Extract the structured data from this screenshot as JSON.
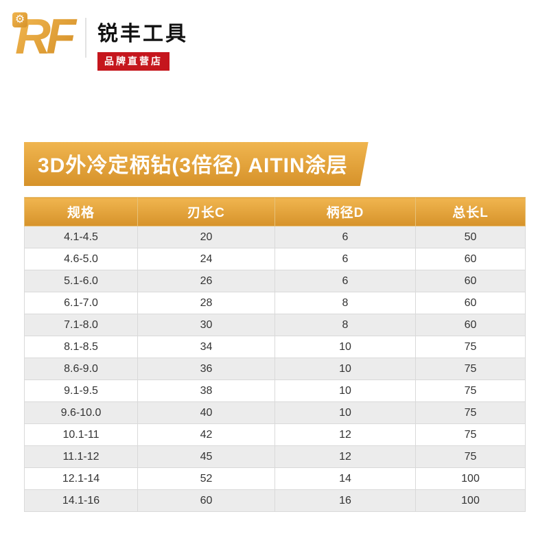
{
  "brand": {
    "logo_text": "RF",
    "gear_icon": "gear",
    "name": "锐丰工具",
    "badge": "品牌直营店"
  },
  "title": "3D外冷定柄钻(3倍径) AITIN涂层",
  "table": {
    "headers": [
      "规格",
      "刃长C",
      "柄径D",
      "总长L"
    ],
    "rows": [
      [
        "4.1-4.5",
        "20",
        "6",
        "50"
      ],
      [
        "4.6-5.0",
        "24",
        "6",
        "60"
      ],
      [
        "5.1-6.0",
        "26",
        "6",
        "60"
      ],
      [
        "6.1-7.0",
        "28",
        "8",
        "60"
      ],
      [
        "7.1-8.0",
        "30",
        "8",
        "60"
      ],
      [
        "8.1-8.5",
        "34",
        "10",
        "75"
      ],
      [
        "8.6-9.0",
        "36",
        "10",
        "75"
      ],
      [
        "9.1-9.5",
        "38",
        "10",
        "75"
      ],
      [
        "9.6-10.0",
        "40",
        "10",
        "75"
      ],
      [
        "10.1-11",
        "42",
        "12",
        "75"
      ],
      [
        "11.1-12",
        "45",
        "12",
        "75"
      ],
      [
        "12.1-14",
        "52",
        "14",
        "100"
      ],
      [
        "14.1-16",
        "60",
        "16",
        "100"
      ]
    ]
  },
  "colors": {
    "gold": "#E2A23C",
    "gold_light": "#F0B54F",
    "gold_dark": "#D6922A",
    "red": "#C5161D",
    "row_alt": "#ECECEC",
    "border": "#D9D9D9"
  }
}
